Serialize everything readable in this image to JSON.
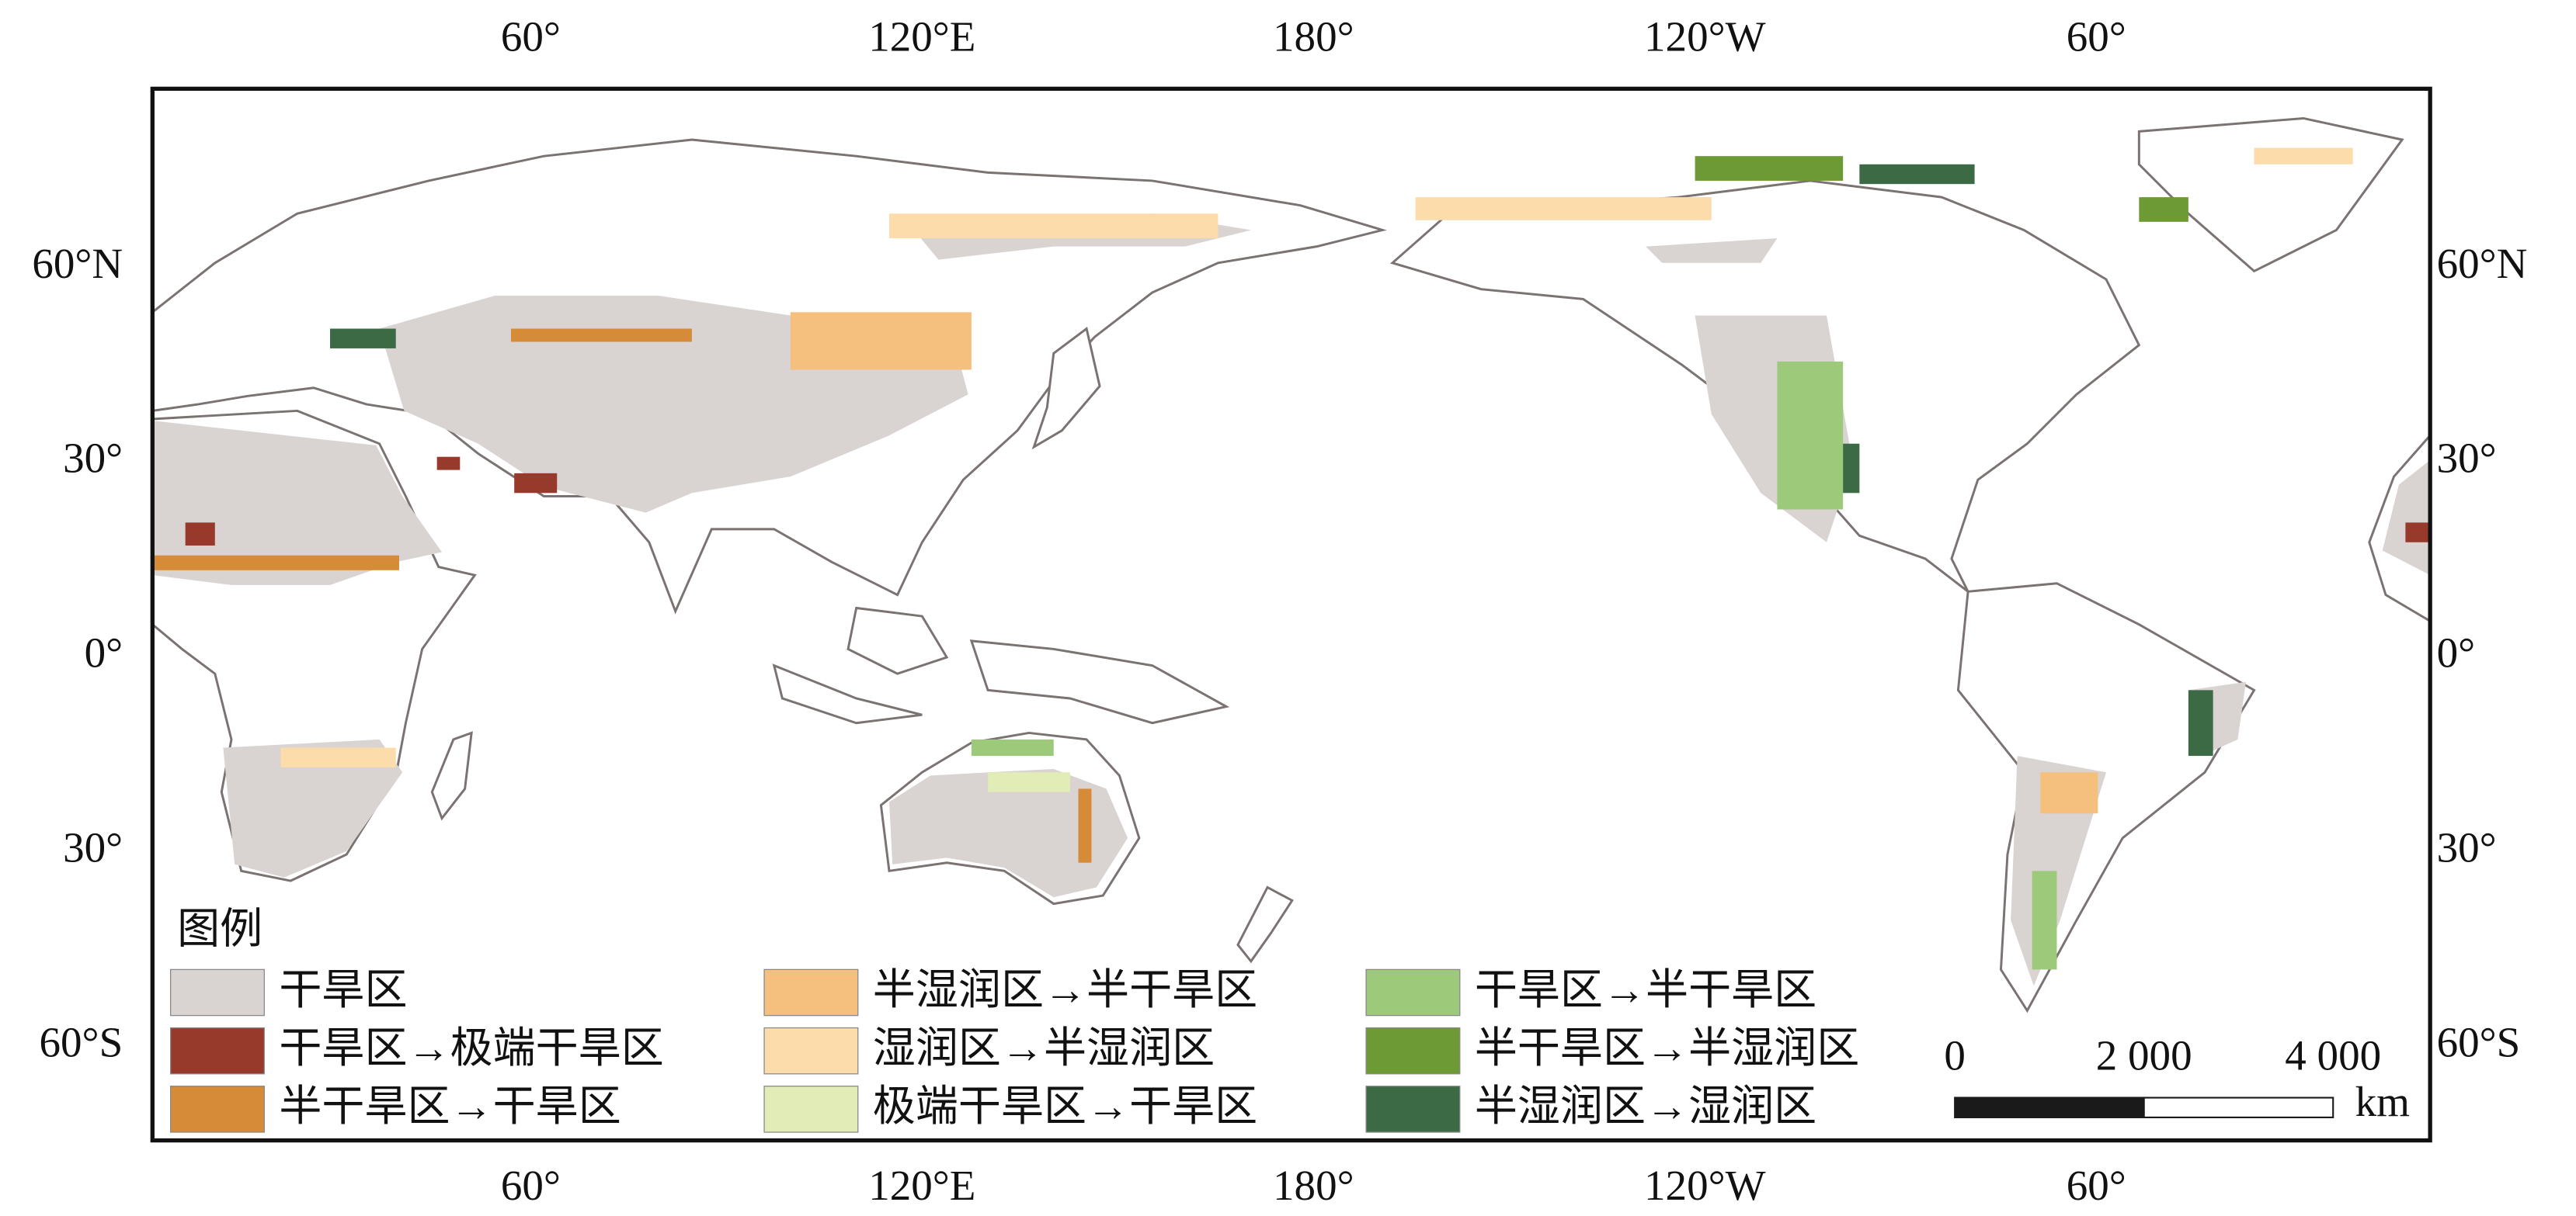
{
  "map": {
    "top_labels": [
      "60°",
      "120°E",
      "180°",
      "120°W",
      "60°"
    ],
    "bottom_labels": [
      "60°",
      "120°E",
      "180°",
      "120°W",
      "60°"
    ],
    "left_labels": [
      "60°N",
      "30°",
      "0°",
      "30°",
      "60°S"
    ],
    "right_labels": [
      "60°N",
      "30°",
      "0°",
      "30°",
      "60°S"
    ],
    "legend": {
      "title": "图例",
      "items": [
        {
          "label": "干旱区",
          "color": "#d9d3d2"
        },
        {
          "label": "干旱区→极端干旱区",
          "color": "#983a2b"
        },
        {
          "label": "半干旱区→干旱区",
          "color": "#d68b38"
        },
        {
          "label": "半湿润区→半干旱区",
          "color": "#f5c07e"
        },
        {
          "label": "湿润区→半湿润区",
          "color": "#fbdcaa"
        },
        {
          "label": "极端干旱区→干旱区",
          "color": "#e1ecb6"
        },
        {
          "label": "干旱区→半干旱区",
          "color": "#9cc97a"
        },
        {
          "label": "半干旱区→半湿润区",
          "color": "#6e9a36"
        },
        {
          "label": "半湿润区→湿润区",
          "color": "#3c6a45"
        }
      ]
    },
    "scale_bar": {
      "labels": [
        "0",
        "2 000",
        "4 000"
      ],
      "unit": "km"
    }
  }
}
